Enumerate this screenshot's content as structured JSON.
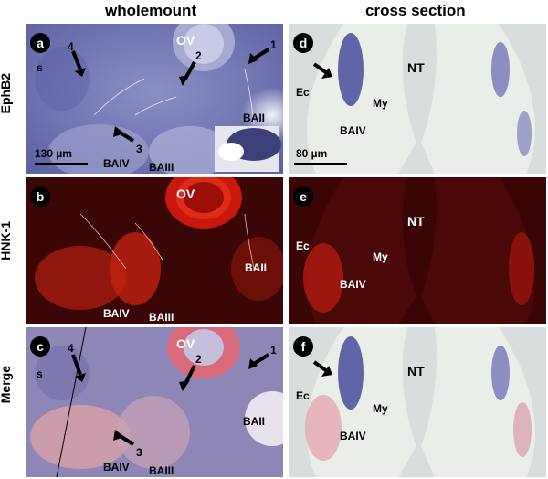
{
  "columns": {
    "left": "wholemount",
    "right": "cross section"
  },
  "rows": {
    "row1": "EphB2",
    "row2": "HNK-1",
    "row3": "Merge"
  },
  "panels": {
    "a": {
      "letter": "a",
      "ov": "OV",
      "s": "s",
      "arrows": [
        "4",
        "2",
        "1",
        "3"
      ],
      "labels": [
        "BAII",
        "BAIV",
        "BAIII"
      ],
      "scale": "130 µm"
    },
    "b": {
      "letter": "b",
      "ov": "OV",
      "labels": [
        "BAII",
        "BAIV",
        "BAIII"
      ]
    },
    "c": {
      "letter": "c",
      "ov": "OV",
      "s": "s",
      "arrows": [
        "4",
        "2",
        "1",
        "3"
      ],
      "labels": [
        "BAII",
        "BAIV",
        "BAIII"
      ]
    },
    "d": {
      "letter": "d",
      "labels": [
        "NT",
        "Ec",
        "My",
        "BAIV"
      ],
      "scale": "80 µm"
    },
    "e": {
      "letter": "e",
      "labels": [
        "NT",
        "Ec",
        "My",
        "BAIV"
      ]
    },
    "f": {
      "letter": "f",
      "labels": [
        "NT",
        "Ec",
        "My",
        "BAIV"
      ]
    }
  },
  "colors": {
    "ephb2": "#4a4f9a",
    "hnk1": "#e02010",
    "background_dark": "#3a0505"
  }
}
